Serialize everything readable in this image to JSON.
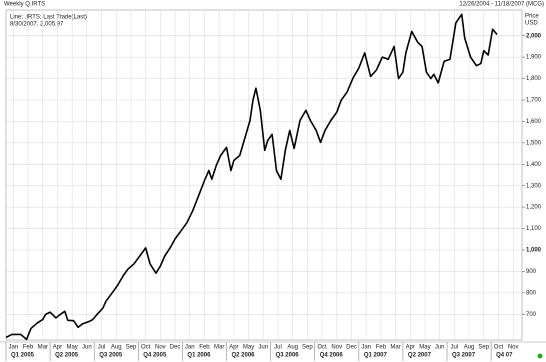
{
  "chart_data": {
    "type": "line",
    "title": "Weekly Q.IRTS",
    "date_range": "12/26/2004 - 11/18/2007 (MCG)",
    "legend_title": "Line; .IRTS; Last Trade(Last)",
    "legend_value": "8/30/2007, 2,005.97",
    "y_axis_label": "Price",
    "y_axis_unit": "USD",
    "grid": true,
    "xlim": [
      -0.5,
      34.6
    ],
    "ylim": [
      580,
      2120
    ],
    "xticks": [
      {
        "value": 0,
        "label": "Jan"
      },
      {
        "value": 1,
        "label": "Feb"
      },
      {
        "value": 2,
        "label": "Mar"
      },
      {
        "value": 3,
        "label": "Apr"
      },
      {
        "value": 4,
        "label": "May"
      },
      {
        "value": 5,
        "label": "Jun"
      },
      {
        "value": 6,
        "label": "Jul"
      },
      {
        "value": 7,
        "label": "Aug"
      },
      {
        "value": 8,
        "label": "Sep"
      },
      {
        "value": 9,
        "label": "Oct"
      },
      {
        "value": 10,
        "label": "Nov"
      },
      {
        "value": 11,
        "label": "Dec"
      },
      {
        "value": 12,
        "label": "Jan"
      },
      {
        "value": 13,
        "label": "Feb"
      },
      {
        "value": 14,
        "label": "Mar"
      },
      {
        "value": 15,
        "label": "Apr"
      },
      {
        "value": 16,
        "label": "May"
      },
      {
        "value": 17,
        "label": "Jun"
      },
      {
        "value": 18,
        "label": "Jul"
      },
      {
        "value": 19,
        "label": "Aug"
      },
      {
        "value": 20,
        "label": "Sep"
      },
      {
        "value": 21,
        "label": "Oct"
      },
      {
        "value": 22,
        "label": "Nov"
      },
      {
        "value": 23,
        "label": "Dec"
      },
      {
        "value": 24,
        "label": "Jan"
      },
      {
        "value": 25,
        "label": "Feb"
      },
      {
        "value": 26,
        "label": "Mar"
      },
      {
        "value": 27,
        "label": "Apr"
      },
      {
        "value": 28,
        "label": "May"
      },
      {
        "value": 29,
        "label": "Jun"
      },
      {
        "value": 30,
        "label": "Jul"
      },
      {
        "value": 31,
        "label": "Aug"
      },
      {
        "value": 32,
        "label": "Sep"
      },
      {
        "value": 33,
        "label": "Oct"
      },
      {
        "value": 34,
        "label": "Nov"
      }
    ],
    "quarter_ticks": [
      {
        "value": 0,
        "label": "Q1 2005"
      },
      {
        "value": 3,
        "label": "Q2 2005"
      },
      {
        "value": 6,
        "label": "Q3 2005"
      },
      {
        "value": 9,
        "label": "Q4 2005"
      },
      {
        "value": 12,
        "label": "Q1 2006"
      },
      {
        "value": 15,
        "label": "Q2 2006"
      },
      {
        "value": 18,
        "label": "Q3 2006"
      },
      {
        "value": 21,
        "label": "Q4 2006"
      },
      {
        "value": 24,
        "label": "Q1 2007"
      },
      {
        "value": 27,
        "label": "Q2 2007"
      },
      {
        "value": 30,
        "label": "Q3 2007"
      },
      {
        "value": 33,
        "label": "Q4 07"
      }
    ],
    "yticks": [
      700,
      800,
      900,
      {
        "value": 1000,
        "label": "1,000"
      },
      {
        "value": 1100,
        "label": "1,100"
      },
      {
        "value": 1200,
        "label": "1,200"
      },
      {
        "value": 1300,
        "label": "1,300"
      },
      {
        "value": 1400,
        "label": "1,400"
      },
      {
        "value": 1500,
        "label": "1,500"
      },
      {
        "value": 1600,
        "label": "1,600"
      },
      {
        "value": 1700,
        "label": "1,700"
      },
      {
        "value": 1800,
        "label": "1,800"
      },
      {
        "value": 1900,
        "label": "1,900"
      },
      {
        "value": 2000,
        "label": "2,000"
      }
    ],
    "x": [
      -0.5,
      -0.1,
      0.5,
      0.9,
      1.2,
      1.6,
      2.0,
      2.2,
      2.5,
      2.9,
      3.2,
      3.5,
      3.7,
      4.1,
      4.4,
      4.7,
      5.1,
      5.4,
      5.7,
      6.1,
      6.3,
      6.7,
      7.1,
      7.5,
      7.8,
      8.2,
      8.6,
      9.0,
      9.3,
      9.7,
      10.0,
      10.3,
      10.7,
      11.0,
      11.4,
      11.8,
      12.2,
      12.6,
      13.0,
      13.3,
      13.5,
      13.8,
      14.1,
      14.5,
      14.8,
      15.0,
      15.4,
      15.7,
      16.1,
      16.3,
      16.5,
      16.8,
      17.1,
      17.3,
      17.6,
      17.9,
      18.2,
      18.5,
      18.8,
      19.1,
      19.5,
      19.9,
      20.2,
      20.6,
      20.9,
      21.2,
      21.6,
      22.0,
      22.3,
      22.7,
      23.1,
      23.5,
      23.9,
      24.3,
      24.7,
      25.1,
      25.5,
      25.9,
      26.2,
      26.5,
      26.7,
      27.1,
      27.5,
      27.8,
      28.1,
      28.4,
      28.6,
      28.9,
      29.3,
      29.7,
      30.1,
      30.5,
      30.7,
      31.1,
      31.5,
      31.8,
      32.0,
      32.3,
      32.6,
      32.9
    ],
    "series": [
      {
        "name": ".IRTS",
        "color": "#000000",
        "values": [
          592,
          606,
          606,
          583,
          634,
          658,
          676,
          700,
          710,
          683,
          700,
          714,
          672,
          670,
          639,
          655,
          665,
          675,
          700,
          730,
          761,
          798,
          836,
          883,
          911,
          935,
          972,
          1010,
          935,
          892,
          925,
          972,
          1014,
          1052,
          1089,
          1127,
          1183,
          1253,
          1324,
          1371,
          1330,
          1394,
          1441,
          1479,
          1371,
          1418,
          1441,
          1511,
          1605,
          1699,
          1755,
          1652,
          1465,
          1511,
          1540,
          1370,
          1330,
          1465,
          1558,
          1474,
          1605,
          1652,
          1605,
          1558,
          1502,
          1558,
          1605,
          1643,
          1699,
          1737,
          1802,
          1849,
          1920,
          1810,
          1840,
          1900,
          1890,
          1950,
          1800,
          1830,
          1920,
          2020,
          1970,
          1950,
          1830,
          1800,
          1820,
          1780,
          1880,
          1890,
          2060,
          2100,
          1990,
          1900,
          1860,
          1870,
          1930,
          1910,
          2030,
          2006
        ]
      }
    ]
  }
}
